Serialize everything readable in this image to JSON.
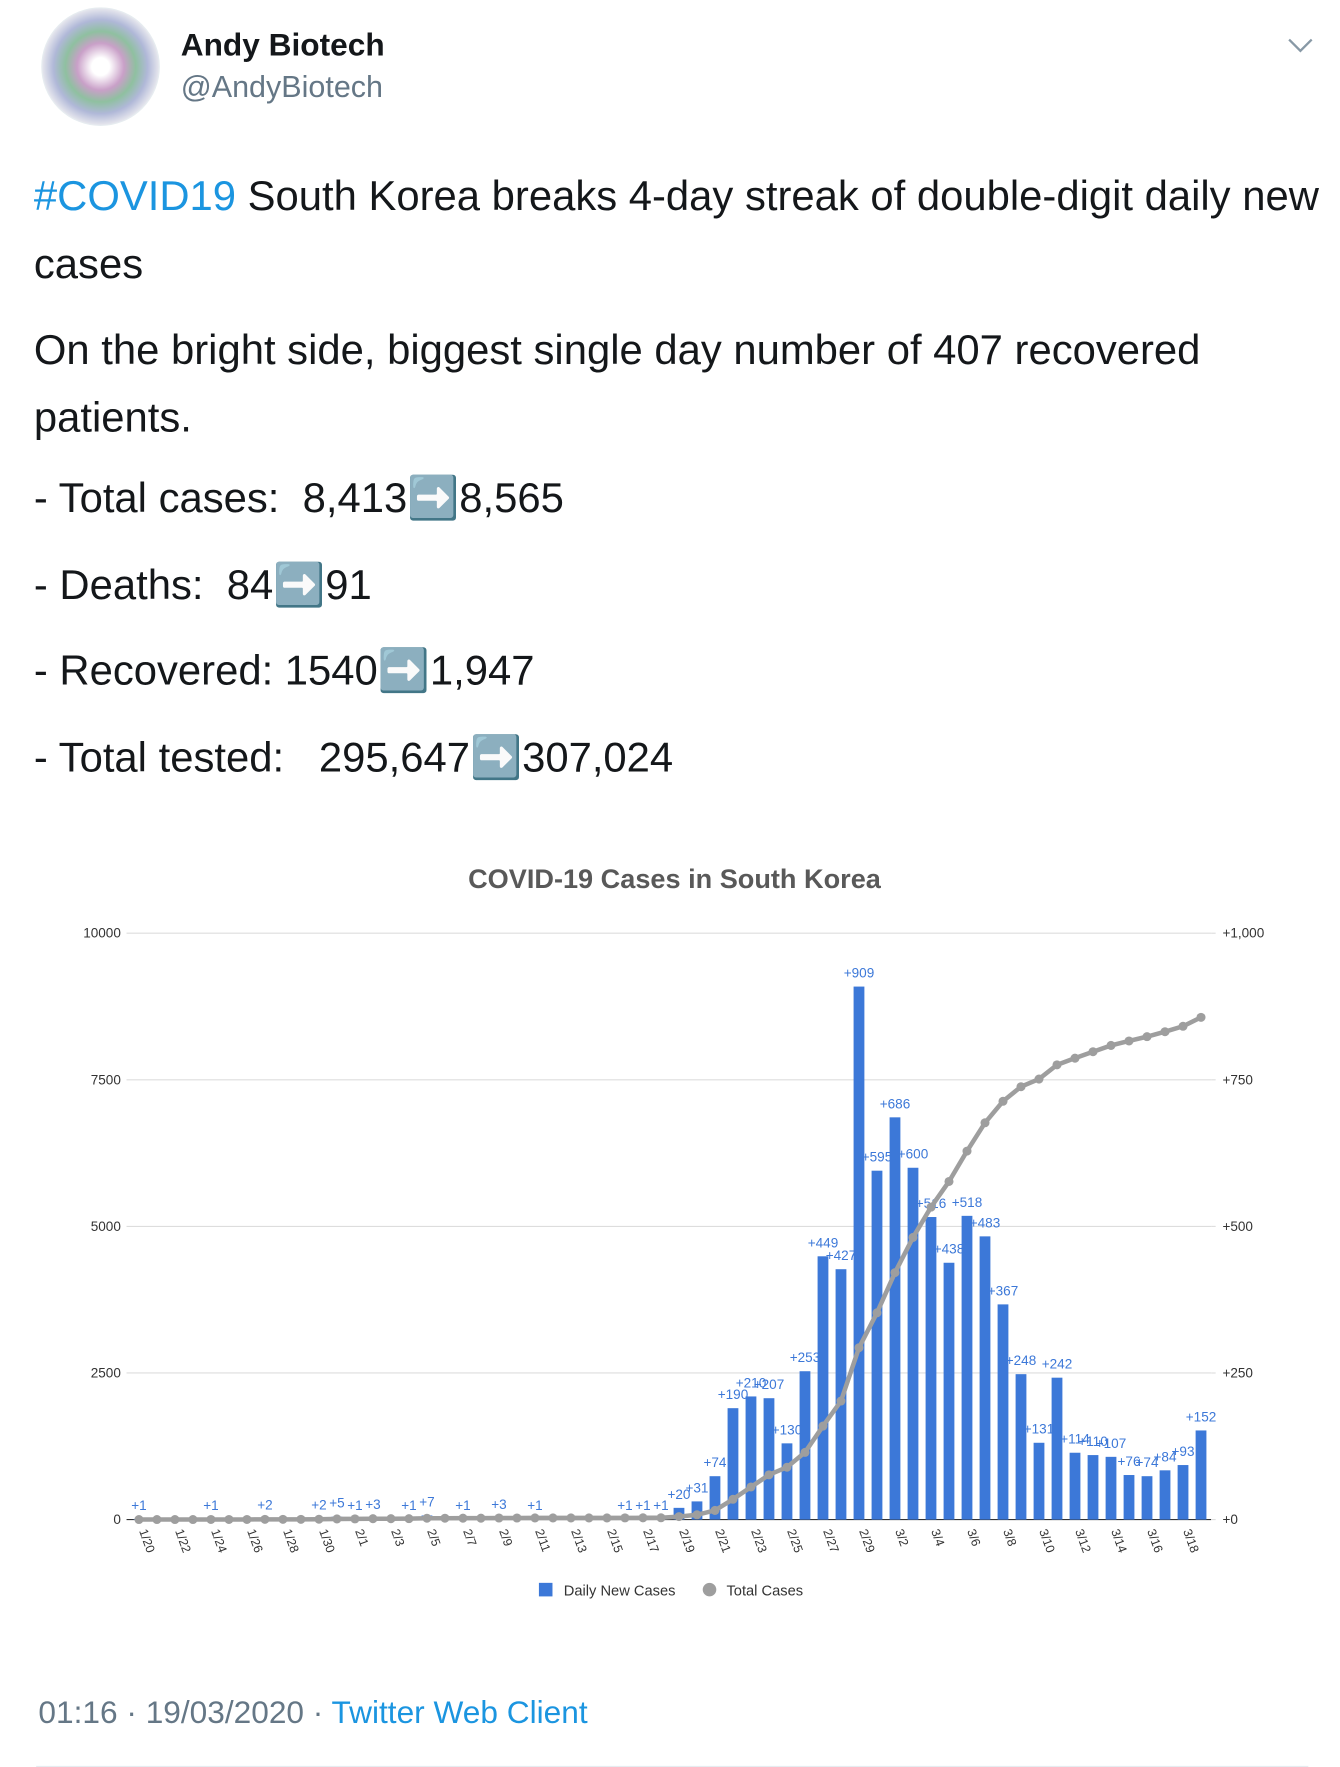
{
  "tweet": {
    "name": "Andy Biotech",
    "handle": "@AndyBiotech",
    "hashtag": "#COVID19",
    "text": " South Korea breaks 4-day streak of double-digit daily new cases",
    "paragraph": "On the bright side, biggest single day number of 407 recovered patients.",
    "stats": [
      "- Total cases:  8,413➡️8,565",
      "- Deaths:  84➡️91",
      "- Recovered: 1540➡️1,947",
      "- Total tested:   295,647➡️307,024"
    ],
    "time": "01:16 · 19/03/2020 · ",
    "source": "Twitter Web Client"
  },
  "chart_data": {
    "type": "bar",
    "title": "COVID-19 Cases in South Korea",
    "categories": [
      "1/20",
      null,
      "1/22",
      null,
      "1/24",
      null,
      "1/26",
      null,
      "1/28",
      null,
      "1/30",
      null,
      "2/1",
      null,
      "2/3",
      null,
      "2/5",
      null,
      "2/7",
      null,
      "2/9",
      null,
      "2/11",
      null,
      "2/13",
      null,
      "2/15",
      null,
      "2/17",
      null,
      "2/19",
      null,
      "2/21",
      null,
      "2/23",
      null,
      "2/25",
      null,
      "2/27",
      null,
      "2/29",
      null,
      "3/2",
      null,
      "3/4",
      null,
      "3/6",
      null,
      "3/8",
      null,
      "3/10",
      null,
      "3/12",
      null,
      "3/14",
      null,
      "3/16",
      null,
      "3/18",
      null
    ],
    "series": [
      {
        "name": "Daily New Cases",
        "color": "#3c78d8",
        "axis": "y2",
        "values": [
          1,
          0,
          0,
          0,
          1,
          0,
          0,
          2,
          0,
          0,
          2,
          5,
          1,
          3,
          0,
          1,
          7,
          0,
          1,
          0,
          3,
          0,
          1,
          0,
          0,
          0,
          0,
          1,
          1,
          1,
          20,
          31,
          74,
          190,
          210,
          207,
          130,
          253,
          449,
          427,
          909,
          595,
          686,
          600,
          516,
          438,
          518,
          483,
          367,
          248,
          131,
          242,
          114,
          110,
          107,
          76,
          74,
          84,
          93,
          152
        ],
        "value_labels": [
          "+1",
          null,
          null,
          null,
          "+1",
          null,
          null,
          "+2",
          null,
          null,
          "+2",
          "+5",
          "+1",
          "+3",
          null,
          "+1",
          "+7",
          null,
          "+1",
          null,
          "+3",
          null,
          "+1",
          null,
          null,
          null,
          null,
          "+1",
          "+1",
          "+1",
          "+20",
          "+31",
          "+74",
          "+190",
          "+210",
          "+207",
          "+130",
          "+253",
          "+449",
          "+427",
          "+909",
          "+595",
          "+686",
          "+600",
          "+516",
          "+438",
          "+518",
          "+483",
          "+367",
          "+248",
          "+131",
          "+242",
          "+114",
          "+110",
          "+107",
          "+76",
          "+74",
          "+84",
          "+93",
          "+152"
        ]
      },
      {
        "name": "Total Cases",
        "color": "#9e9e9e",
        "type": "line",
        "values": [
          1,
          1,
          1,
          1,
          2,
          2,
          2,
          4,
          4,
          4,
          6,
          11,
          12,
          15,
          15,
          16,
          23,
          23,
          24,
          24,
          27,
          27,
          28,
          28,
          28,
          28,
          28,
          29,
          30,
          31,
          51,
          82,
          156,
          346,
          556,
          763,
          893,
          1146,
          1595,
          2022,
          2931,
          3526,
          4212,
          4812,
          5328,
          5766,
          6284,
          6767,
          7134,
          7382,
          7513,
          7755,
          7869,
          7979,
          8086,
          8162,
          8236,
          8320,
          8413,
          8565
        ]
      }
    ],
    "ylim": [
      0,
      10000
    ],
    "yticks": [
      0,
      2500,
      5000,
      7500,
      10000
    ],
    "y2lim": [
      0,
      1000
    ],
    "y2ticks": [
      {
        "value": 0,
        "label": "+0"
      },
      {
        "value": 250,
        "label": "+250"
      },
      {
        "value": 500,
        "label": "+500"
      },
      {
        "value": 750,
        "label": "+750"
      },
      {
        "value": 1000,
        "label": "+1,000"
      }
    ],
    "grid": true,
    "legend": "bottom"
  }
}
